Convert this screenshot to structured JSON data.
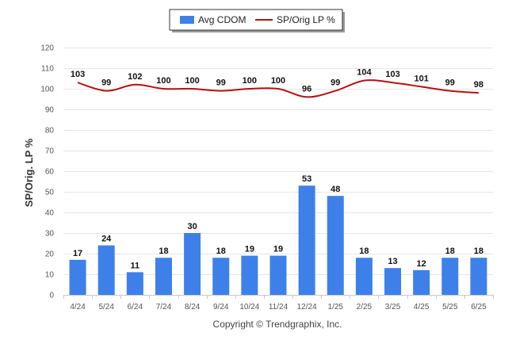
{
  "chart_data": {
    "type": "bar",
    "categories": [
      "4/24",
      "5/24",
      "6/24",
      "7/24",
      "8/24",
      "9/24",
      "10/24",
      "11/24",
      "12/24",
      "1/25",
      "2/25",
      "3/25",
      "4/25",
      "5/25",
      "6/25"
    ],
    "series": [
      {
        "name": "Avg CDOM",
        "type": "bar",
        "color": "#3d80ea",
        "values": [
          17,
          24,
          11,
          18,
          30,
          18,
          19,
          19,
          53,
          48,
          18,
          13,
          12,
          18,
          18
        ]
      },
      {
        "name": "SP/Orig LP %",
        "type": "line",
        "color": "#b80f0f",
        "values": [
          103,
          99,
          102,
          100,
          100,
          99,
          100,
          100,
          96,
          99,
          104,
          103,
          101,
          99,
          98
        ]
      }
    ],
    "ylabel": "SP/Orig. LP %",
    "ylim": [
      0,
      120
    ],
    "yticks": [
      0,
      10,
      20,
      30,
      40,
      50,
      60,
      70,
      80,
      90,
      100,
      110,
      120
    ],
    "grid": true,
    "legend": "top-center"
  },
  "credit": "Copyright © Trendgraphix, Inc."
}
